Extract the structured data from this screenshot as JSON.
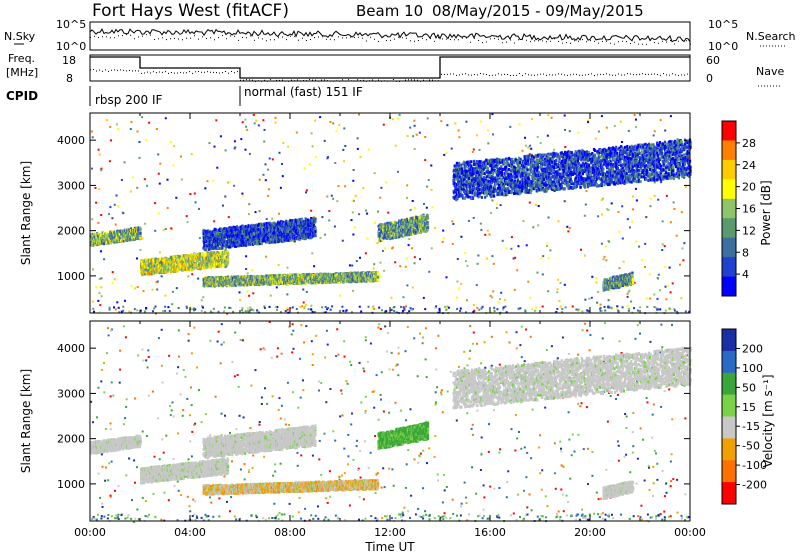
{
  "header": {
    "title": "Fort Hays West (fitACF)",
    "beam": "Beam 10",
    "date_range": "08/May/2015 - 09/May/2015"
  },
  "top_panels": {
    "nsky_label": "N.Sky",
    "nsearch_label": "N.Search",
    "noise_ticks": [
      "10^5",
      "10^0"
    ],
    "freq_label_1": "Freq.",
    "freq_label_2": "[MHz]",
    "freq_ticks": [
      "18",
      "8"
    ],
    "nave_label": "Nave",
    "nave_ticks": [
      "60",
      "0"
    ],
    "cpid_label": "CPID",
    "cpid_segments": [
      {
        "label": "rbsp 200 IF",
        "start_hour": 0,
        "end_hour": 6
      },
      {
        "label": "normal (fast) 151 IF",
        "start_hour": 6,
        "end_hour": 24
      }
    ],
    "frequency_steps": [
      {
        "start_hour": 0,
        "end_hour": 2,
        "level": "high"
      },
      {
        "start_hour": 2,
        "end_hour": 6,
        "level": "mid"
      },
      {
        "start_hour": 6,
        "end_hour": 14,
        "level": "low"
      },
      {
        "start_hour": 14,
        "end_hour": 24,
        "level": "high"
      }
    ]
  },
  "chart_data": [
    {
      "type": "heatmap",
      "panel": "power",
      "xlabel": "",
      "ylabel": "Slant Range [km]",
      "x_range_hours": [
        0,
        24
      ],
      "ylim": [
        180,
        4600
      ],
      "yticks": [
        1000,
        2000,
        3000,
        4000
      ],
      "colorbar_label": "Power [dB]",
      "colorbar_ticks": [
        "4",
        "8",
        "12",
        "16",
        "20",
        "24",
        "28"
      ],
      "colorscale": [
        "#0000ff",
        "#2040d0",
        "#3c6ea0",
        "#5a9a6c",
        "#8ec46a",
        "#ffff00",
        "#ffcc00",
        "#ff8000",
        "#ff0000"
      ],
      "features": [
        {
          "name": "early band",
          "start_hour": 0.0,
          "end_hour": 2.0,
          "range_start_km": 1700,
          "range_end_km": 2150,
          "mean_db": 14
        },
        {
          "name": "rising band A",
          "start_hour": 2.0,
          "end_hour": 5.5,
          "range_start_km": 1050,
          "range_end_km": 1650,
          "mean_db": 18
        },
        {
          "name": "rising band B",
          "start_hour": 4.5,
          "end_hour": 9.0,
          "range_start_km": 1600,
          "range_end_km": 2400,
          "mean_db": 6
        },
        {
          "name": "lower band",
          "start_hour": 4.5,
          "end_hour": 11.5,
          "range_start_km": 800,
          "range_end_km": 1150,
          "mean_db": 14
        },
        {
          "name": "midnight patch",
          "start_hour": 11.5,
          "end_hour": 13.5,
          "range_start_km": 1800,
          "range_end_km": 2450,
          "mean_db": 12
        },
        {
          "name": "late band",
          "start_hour": 14.5,
          "end_hour": 24.0,
          "range_start_km": 2700,
          "range_end_km": 4200,
          "mean_db": 6
        },
        {
          "name": "late patch",
          "start_hour": 20.5,
          "end_hour": 21.7,
          "range_start_km": 700,
          "range_end_km": 1150,
          "mean_db": 12
        }
      ]
    },
    {
      "type": "heatmap",
      "panel": "velocity",
      "xlabel": "Time UT",
      "ylabel": "Slant Range [km]",
      "x_range_hours": [
        0,
        24
      ],
      "xticks": [
        "00:00",
        "04:00",
        "08:00",
        "12:00",
        "16:00",
        "20:00",
        "00:00"
      ],
      "ylim": [
        180,
        4600
      ],
      "yticks": [
        1000,
        2000,
        3000,
        4000
      ],
      "colorbar_label": "Velocity [m s⁻¹]",
      "colorbar_ticks": [
        "200",
        "100",
        "50",
        "15",
        "-15",
        "-50",
        "-100",
        "-200"
      ],
      "colorscale": [
        "#1a2ea6",
        "#2a6ac4",
        "#3aa63a",
        "#7ad24a",
        "#c8c8c8",
        "#f0a000",
        "#ff7000",
        "#ff0000"
      ],
      "features": [
        {
          "name": "early band",
          "start_hour": 0.0,
          "end_hour": 2.0,
          "range_start_km": 1700,
          "range_end_km": 2150,
          "mean_velocity": 0
        },
        {
          "name": "rising band A",
          "start_hour": 2.0,
          "end_hour": 5.5,
          "range_start_km": 1050,
          "range_end_km": 1650,
          "mean_velocity": 0
        },
        {
          "name": "rising band B",
          "start_hour": 4.5,
          "end_hour": 9.0,
          "range_start_km": 1600,
          "range_end_km": 2400,
          "mean_velocity": 0
        },
        {
          "name": "lower band",
          "start_hour": 4.5,
          "end_hour": 11.5,
          "range_start_km": 800,
          "range_end_km": 1150,
          "mean_velocity": -40
        },
        {
          "name": "midnight patch",
          "start_hour": 11.5,
          "end_hour": 13.5,
          "range_start_km": 1800,
          "range_end_km": 2450,
          "mean_velocity": 30
        },
        {
          "name": "late band",
          "start_hour": 14.5,
          "end_hour": 24.0,
          "range_start_km": 2700,
          "range_end_km": 4200,
          "mean_velocity": 0
        },
        {
          "name": "late patch",
          "start_hour": 20.5,
          "end_hour": 21.7,
          "range_start_km": 700,
          "range_end_km": 1150,
          "mean_velocity": 0
        }
      ]
    }
  ]
}
